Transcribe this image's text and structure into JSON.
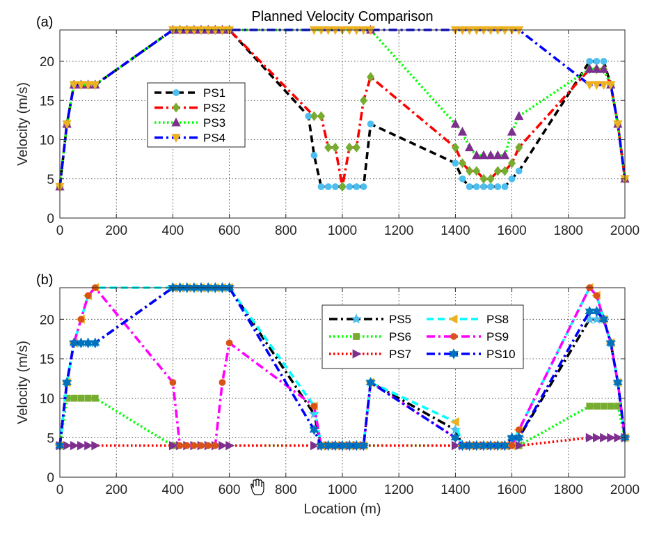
{
  "chart_data": [
    {
      "panel_label": "(a)",
      "type": "line",
      "title": "Planned Velocity Comparison",
      "xlabel": "",
      "ylabel": "Velocity (m/s)",
      "xlim": [
        0,
        2000
      ],
      "ylim": [
        0,
        24
      ],
      "xticks": [
        0,
        200,
        400,
        600,
        800,
        1000,
        1200,
        1400,
        1600,
        1800,
        2000
      ],
      "yticks": [
        0,
        5,
        10,
        15,
        20
      ],
      "grid": true,
      "legend_position": "middle-left",
      "series": [
        {
          "name": "PS1",
          "color": "#000000",
          "dash": "dashed",
          "marker": "circle",
          "marker_color": "#4DBEEE",
          "x": [
            0,
            25,
            50,
            75,
            100,
            125,
            400,
            425,
            450,
            475,
            500,
            525,
            550,
            575,
            600,
            880,
            900,
            925,
            950,
            975,
            1000,
            1025,
            1050,
            1075,
            1100,
            1400,
            1425,
            1450,
            1475,
            1500,
            1525,
            1550,
            1575,
            1600,
            1625,
            1875,
            1900,
            1925,
            1950,
            1975,
            2000
          ],
          "y": [
            4,
            12,
            17,
            17,
            17,
            17,
            24,
            24,
            24,
            24,
            24,
            24,
            24,
            24,
            24,
            13,
            8,
            4,
            4,
            4,
            4,
            4,
            4,
            4,
            12,
            7,
            5,
            4,
            4,
            4,
            4,
            4,
            4,
            5,
            6,
            20,
            20,
            20,
            17,
            12,
            5
          ]
        },
        {
          "name": "PS2",
          "color": "#FF0000",
          "dash": "dashdot",
          "marker": "diamond",
          "marker_color": "#77AC30",
          "x": [
            0,
            25,
            50,
            75,
            100,
            125,
            400,
            425,
            450,
            475,
            500,
            525,
            550,
            575,
            600,
            900,
            925,
            950,
            975,
            1000,
            1025,
            1050,
            1075,
            1100,
            1400,
            1425,
            1450,
            1475,
            1500,
            1525,
            1550,
            1575,
            1600,
            1625,
            1875,
            1900,
            1925,
            1950,
            1975,
            2000
          ],
          "y": [
            4,
            12,
            17,
            17,
            17,
            17,
            24,
            24,
            24,
            24,
            24,
            24,
            24,
            24,
            24,
            13,
            13,
            9,
            9,
            4,
            9,
            9,
            15,
            18,
            9,
            7,
            6,
            6,
            5,
            5,
            6,
            6,
            7,
            9,
            19,
            19,
            19,
            17,
            12,
            5
          ]
        },
        {
          "name": "PS3",
          "color": "#00FF00",
          "dash": "dotted",
          "marker": "triangle-up",
          "marker_color": "#7E2F8E",
          "x": [
            0,
            25,
            50,
            75,
            100,
            125,
            400,
            425,
            450,
            475,
            500,
            525,
            550,
            575,
            600,
            1100,
            1400,
            1425,
            1450,
            1475,
            1500,
            1525,
            1550,
            1575,
            1600,
            1625,
            1875,
            1900,
            1925,
            1950,
            1975,
            2000
          ],
          "y": [
            4,
            12,
            17,
            17,
            17,
            17,
            24,
            24,
            24,
            24,
            24,
            24,
            24,
            24,
            24,
            24,
            12,
            11,
            9,
            8,
            8,
            8,
            8,
            8,
            11,
            13,
            19,
            19,
            19,
            17,
            12,
            5
          ]
        },
        {
          "name": "PS4",
          "color": "#0000FF",
          "dash": "dashdot",
          "marker": "triangle-down",
          "marker_color": "#EDB120",
          "x": [
            0,
            25,
            50,
            75,
            100,
            125,
            400,
            425,
            450,
            475,
            500,
            525,
            550,
            575,
            600,
            900,
            925,
            950,
            975,
            1000,
            1025,
            1050,
            1075,
            1100,
            1400,
            1425,
            1450,
            1475,
            1500,
            1525,
            1550,
            1575,
            1600,
            1625,
            1875,
            1900,
            1925,
            1950,
            1975,
            2000
          ],
          "y": [
            4,
            12,
            17,
            17,
            17,
            17,
            24,
            24,
            24,
            24,
            24,
            24,
            24,
            24,
            24,
            24,
            24,
            24,
            24,
            24,
            24,
            24,
            24,
            24,
            24,
            24,
            24,
            24,
            24,
            24,
            24,
            24,
            24,
            24,
            17,
            17,
            17,
            17,
            12,
            5
          ]
        }
      ]
    },
    {
      "panel_label": "(b)",
      "type": "line",
      "title": "",
      "xlabel": "Location (m)",
      "ylabel": "Velocity (m/s)",
      "xlim": [
        0,
        2000
      ],
      "ylim": [
        0,
        24
      ],
      "xticks": [
        0,
        200,
        400,
        600,
        800,
        1000,
        1200,
        1400,
        1600,
        1800,
        2000
      ],
      "yticks": [
        0,
        5,
        10,
        15,
        20
      ],
      "grid": true,
      "legend_position": "top-right",
      "series": [
        {
          "name": "PS5",
          "color": "#000000",
          "dash": "dashdot",
          "marker": "star",
          "marker_color": "#4DBEEE",
          "x": [
            0,
            25,
            50,
            75,
            100,
            125,
            400,
            425,
            450,
            475,
            500,
            525,
            550,
            575,
            600,
            900,
            925,
            950,
            975,
            1000,
            1025,
            1050,
            1075,
            1100,
            1400,
            1425,
            1450,
            1475,
            1500,
            1525,
            1550,
            1575,
            1600,
            1625,
            1875,
            1900,
            1925,
            1950,
            1975,
            2000
          ],
          "y": [
            4,
            12,
            17,
            17,
            17,
            17,
            24,
            24,
            24,
            24,
            24,
            24,
            24,
            24,
            24,
            8,
            4,
            4,
            4,
            4,
            4,
            4,
            4,
            12,
            6,
            4,
            4,
            4,
            4,
            4,
            4,
            4,
            5,
            5,
            20,
            20,
            20,
            17,
            12,
            5
          ]
        },
        {
          "name": "PS6",
          "color": "#00FF00",
          "dash": "dotted",
          "marker": "square",
          "marker_color": "#77AC30",
          "x": [
            0,
            25,
            50,
            75,
            100,
            125,
            400,
            1600,
            1625,
            1875,
            1900,
            1925,
            1950,
            1975,
            2000
          ],
          "y": [
            4,
            10,
            10,
            10,
            10,
            10,
            4,
            4,
            4,
            9,
            9,
            9,
            9,
            9,
            5
          ]
        },
        {
          "name": "PS7",
          "color": "#FF0000",
          "dash": "dotted",
          "marker": "triangle-right",
          "marker_color": "#7E2F8E",
          "x": [
            0,
            25,
            50,
            75,
            100,
            125,
            400,
            425,
            450,
            475,
            500,
            525,
            550,
            575,
            600,
            900,
            925,
            950,
            975,
            1000,
            1025,
            1050,
            1075,
            1400,
            1425,
            1450,
            1475,
            1500,
            1525,
            1550,
            1575,
            1600,
            1625,
            1875,
            1900,
            1925,
            1950,
            1975,
            2000
          ],
          "y": [
            4,
            4,
            4,
            4,
            4,
            4,
            4,
            4,
            4,
            4,
            4,
            4,
            4,
            4,
            4,
            4,
            4,
            4,
            4,
            4,
            4,
            4,
            4,
            4,
            4,
            4,
            4,
            4,
            4,
            4,
            4,
            4,
            4,
            5,
            5,
            5,
            5,
            5,
            5
          ]
        },
        {
          "name": "PS8",
          "color": "#00FFFF",
          "dash": "dashed",
          "marker": "triangle-left",
          "marker_color": "#EDB120",
          "x": [
            0,
            25,
            50,
            75,
            100,
            125,
            400,
            425,
            450,
            475,
            500,
            525,
            550,
            575,
            600,
            900,
            925,
            950,
            975,
            1000,
            1025,
            1050,
            1075,
            1100,
            1400,
            1425,
            1450,
            1475,
            1500,
            1525,
            1550,
            1575,
            1600,
            1625,
            1875,
            1900,
            1925,
            1950,
            1975,
            2000
          ],
          "y": [
            4,
            12,
            17,
            20,
            23,
            24,
            24,
            24,
            24,
            24,
            24,
            24,
            24,
            24,
            24,
            9,
            4,
            4,
            4,
            4,
            4,
            4,
            4,
            12,
            7,
            4,
            4,
            4,
            4,
            4,
            4,
            4,
            4,
            6,
            24,
            23,
            20,
            17,
            12,
            5
          ]
        },
        {
          "name": "PS9",
          "color": "#FF00FF",
          "dash": "dashdot",
          "marker": "circle",
          "marker_color": "#D95319",
          "x": [
            0,
            25,
            50,
            75,
            100,
            125,
            400,
            425,
            450,
            475,
            500,
            525,
            550,
            575,
            600,
            900,
            925,
            950,
            975,
            1000,
            1025,
            1050,
            1075,
            1100,
            1400,
            1425,
            1450,
            1475,
            1500,
            1525,
            1550,
            1575,
            1600,
            1625,
            1875,
            1900,
            1925,
            1950,
            1975,
            2000
          ],
          "y": [
            4,
            12,
            17,
            20,
            23,
            24,
            12,
            4,
            4,
            4,
            4,
            4,
            4,
            12,
            17,
            9,
            4,
            4,
            4,
            4,
            4,
            4,
            4,
            12,
            5,
            4,
            4,
            4,
            4,
            4,
            4,
            4,
            4,
            6,
            24,
            23,
            20,
            17,
            12,
            5
          ]
        },
        {
          "name": "PS10",
          "color": "#0000FF",
          "dash": "dashdot",
          "marker": "hexagram",
          "marker_color": "#0072BD",
          "x": [
            0,
            25,
            50,
            75,
            100,
            125,
            400,
            425,
            450,
            475,
            500,
            525,
            550,
            575,
            600,
            900,
            925,
            950,
            975,
            1000,
            1025,
            1050,
            1075,
            1100,
            1400,
            1425,
            1450,
            1475,
            1500,
            1525,
            1550,
            1575,
            1600,
            1625,
            1875,
            1900,
            1925,
            1950,
            1975,
            2000
          ],
          "y": [
            4,
            12,
            17,
            17,
            17,
            17,
            24,
            24,
            24,
            24,
            24,
            24,
            24,
            24,
            24,
            6,
            4,
            4,
            4,
            4,
            4,
            4,
            4,
            12,
            5,
            4,
            4,
            4,
            4,
            4,
            4,
            4,
            5,
            5,
            21,
            21,
            20,
            17,
            12,
            5
          ]
        }
      ]
    }
  ]
}
